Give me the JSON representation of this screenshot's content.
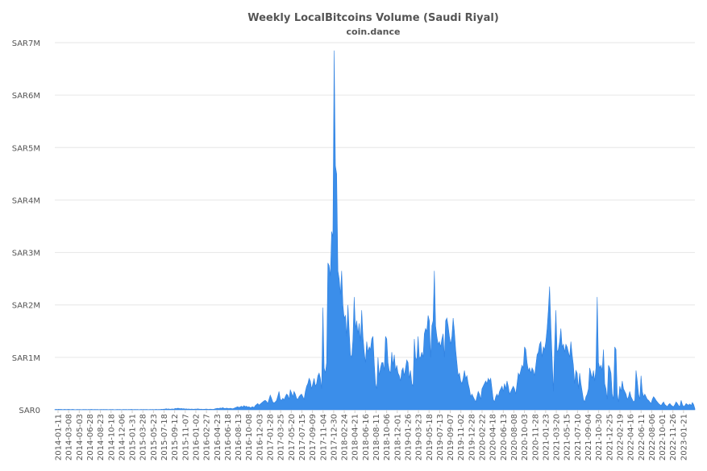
{
  "chart_data": {
    "type": "area",
    "title": "Weekly LocalBitcoins Volume (Saudi Riyal)",
    "subtitle": "coin.dance",
    "xlabel": "",
    "ylabel": "",
    "ylim": [
      0,
      7000000
    ],
    "y_ticks": [
      0,
      1000000,
      2000000,
      3000000,
      4000000,
      5000000,
      6000000,
      7000000
    ],
    "y_tick_labels": [
      "SAR0",
      "SAR1M",
      "SAR2M",
      "SAR3M",
      "SAR4M",
      "SAR5M",
      "SAR6M",
      "SAR7M"
    ],
    "x_tick_labels": [
      "2014-01-11",
      "2014-03-08",
      "2014-05-03",
      "2014-06-28",
      "2014-08-23",
      "2014-10-18",
      "2014-12-06",
      "2015-01-31",
      "2015-03-28",
      "2015-05-23",
      "2015-07-18",
      "2015-09-12",
      "2015-11-07",
      "2016-01-02",
      "2016-02-27",
      "2016-04-23",
      "2016-06-18",
      "2016-08-13",
      "2016-10-08",
      "2016-12-03",
      "2017-01-28",
      "2017-03-25",
      "2017-05-20",
      "2017-07-15",
      "2017-09-09",
      "2017-11-04",
      "2017-12-30",
      "2018-02-24",
      "2018-04-21",
      "2018-06-16",
      "2018-08-11",
      "2018-10-06",
      "2018-12-01",
      "2019-01-26",
      "2019-03-23",
      "2019-05-18",
      "2019-07-13",
      "2019-09-07",
      "2019-11-02",
      "2019-12-28",
      "2020-02-22",
      "2020-04-18",
      "2020-06-13",
      "2020-08-08",
      "2020-10-03",
      "2020-11-28",
      "2021-01-23",
      "2021-03-20",
      "2021-05-15",
      "2021-07-10",
      "2021-09-04",
      "2021-10-30",
      "2021-12-25",
      "2022-02-19",
      "2022-04-16",
      "2022-06-11",
      "2022-08-06",
      "2022-10-01",
      "2022-11-26",
      "2023-01-21"
    ],
    "grid": true,
    "legend": "none",
    "color": "#3b8eea",
    "series": [
      {
        "values": [
          5000,
          8000,
          6000,
          10000,
          7000,
          9000,
          5000,
          6000,
          8000,
          5000,
          7000,
          9000,
          6000,
          5000,
          8000,
          6000,
          4000,
          5000,
          7000,
          5000,
          6000,
          4000,
          5000,
          6000,
          5000,
          7000,
          4000,
          6000,
          5000,
          8000,
          6000,
          5000,
          7000,
          5000,
          6000,
          4000,
          5000,
          6000,
          5000,
          7000,
          5000,
          6000,
          5000,
          4000,
          6000,
          5000,
          7000,
          5000,
          4000,
          5000,
          6000,
          5000,
          7000,
          4000,
          5000,
          6000,
          5000,
          7000,
          4000,
          6000,
          5000,
          8000,
          6000,
          5000,
          7000,
          5000,
          6000,
          4000,
          5000,
          6000,
          5000,
          7000,
          5000,
          6000,
          5000,
          4000,
          6000,
          5000,
          7000,
          5000,
          6000,
          8000,
          5000,
          7000,
          6000,
          10000,
          8000,
          12000,
          15000,
          20000,
          12000,
          18000,
          10000,
          14000,
          16000,
          12000,
          25000,
          22000,
          30000,
          28000,
          20000,
          25000,
          18000,
          22000,
          15000,
          18000,
          12000,
          16000,
          10000,
          14000,
          12000,
          10000,
          15000,
          12000,
          18000,
          14000,
          10000,
          12000,
          8000,
          10000,
          12000,
          15000,
          10000,
          8000,
          12000,
          10000,
          8000,
          10000,
          20000,
          25000,
          30000,
          22000,
          35000,
          28000,
          40000,
          30000,
          25000,
          32000,
          28000,
          22000,
          30000,
          25000,
          20000,
          28000,
          40000,
          50000,
          60000,
          45000,
          55000,
          70000,
          50000,
          80000,
          60000,
          70000,
          50000,
          60000,
          40000,
          50000,
          60000,
          40000,
          80000,
          100000,
          120000,
          90000,
          110000,
          130000,
          150000,
          170000,
          180000,
          160000,
          120000,
          200000,
          280000,
          220000,
          150000,
          130000,
          150000,
          180000,
          260000,
          350000,
          200000,
          180000,
          220000,
          190000,
          250000,
          300000,
          280000,
          200000,
          380000,
          320000,
          250000,
          350000,
          300000,
          220000,
          200000,
          250000,
          280000,
          300000,
          250000,
          200000,
          350000,
          450000,
          500000,
          600000,
          550000,
          400000,
          500000,
          600000,
          450000,
          500000,
          650000,
          700000,
          600000,
          400000,
          1950000,
          800000,
          700000,
          900000,
          2800000,
          2750000,
          2550000,
          3400000,
          3300000,
          6850000,
          4650000,
          4500000,
          2650000,
          2500000,
          2200000,
          2650000,
          2000000,
          1750000,
          1800000,
          1400000,
          2000000,
          1500000,
          1050000,
          1000000,
          1350000,
          2150000,
          1550000,
          1700000,
          1450000,
          1650000,
          1300000,
          1900000,
          1400000,
          1100000,
          900000,
          1300000,
          1100000,
          1200000,
          1150000,
          1350000,
          1400000,
          900000,
          500000,
          400000,
          1000000,
          650000,
          800000,
          900000,
          900000,
          750000,
          1400000,
          1350000,
          900000,
          750000,
          700000,
          1100000,
          850000,
          1050000,
          750000,
          850000,
          700000,
          650000,
          550000,
          750000,
          800000,
          650000,
          800000,
          950000,
          900000,
          600000,
          750000,
          500000,
          450000,
          1350000,
          1000000,
          950000,
          1400000,
          1000000,
          1000000,
          1100000,
          1000000,
          1450000,
          1550000,
          1500000,
          1800000,
          1700000,
          1000000,
          1600000,
          1700000,
          2650000,
          1600000,
          1400000,
          1250000,
          1300000,
          1200000,
          1350000,
          1450000,
          1000000,
          1700000,
          1750000,
          1600000,
          1400000,
          1250000,
          1400000,
          1750000,
          1500000,
          1150000,
          900000,
          650000,
          700000,
          550000,
          500000,
          600000,
          750000,
          600000,
          650000,
          500000,
          400000,
          250000,
          300000,
          250000,
          200000,
          150000,
          250000,
          350000,
          300000,
          200000,
          400000,
          450000,
          500000,
          550000,
          500000,
          600000,
          550000,
          600000,
          400000,
          200000,
          150000,
          250000,
          300000,
          250000,
          350000,
          400000,
          450000,
          350000,
          500000,
          400000,
          550000,
          450000,
          300000,
          350000,
          400000,
          450000,
          400000,
          300000,
          500000,
          700000,
          650000,
          750000,
          850000,
          800000,
          1200000,
          1150000,
          900000,
          750000,
          800000,
          700000,
          800000,
          750000,
          650000,
          850000,
          1050000,
          1100000,
          1250000,
          1300000,
          1000000,
          1200000,
          1150000,
          1300000,
          1550000,
          1900000,
          2350000,
          1600000,
          1000000,
          350000,
          1200000,
          1900000,
          1100000,
          1150000,
          1300000,
          1550000,
          1200000,
          1250000,
          1100000,
          1250000,
          1200000,
          1100000,
          1000000,
          1300000,
          1050000,
          850000,
          500000,
          750000,
          700000,
          400000,
          700000,
          500000,
          350000,
          200000,
          150000,
          250000,
          300000,
          400000,
          800000,
          700000,
          600000,
          750000,
          550000,
          800000,
          2150000,
          900000,
          800000,
          850000,
          750000,
          1150000,
          500000,
          400000,
          200000,
          850000,
          800000,
          700000,
          300000,
          200000,
          1200000,
          1150000,
          300000,
          150000,
          450000,
          350000,
          550000,
          400000,
          350000,
          300000,
          200000,
          250000,
          350000,
          250000,
          200000,
          150000,
          180000,
          750000,
          550000,
          300000,
          200000,
          650000,
          350000,
          250000,
          300000,
          250000,
          200000,
          180000,
          150000,
          120000,
          200000,
          250000,
          220000,
          180000,
          150000,
          120000,
          100000,
          80000,
          120000,
          150000,
          100000,
          80000,
          60000,
          100000,
          120000,
          90000,
          70000,
          60000,
          100000,
          150000,
          120000,
          80000,
          60000,
          180000,
          100000,
          60000,
          80000,
          120000,
          100000,
          90000,
          110000,
          80000,
          140000,
          100000,
          20000
        ]
      }
    ]
  }
}
